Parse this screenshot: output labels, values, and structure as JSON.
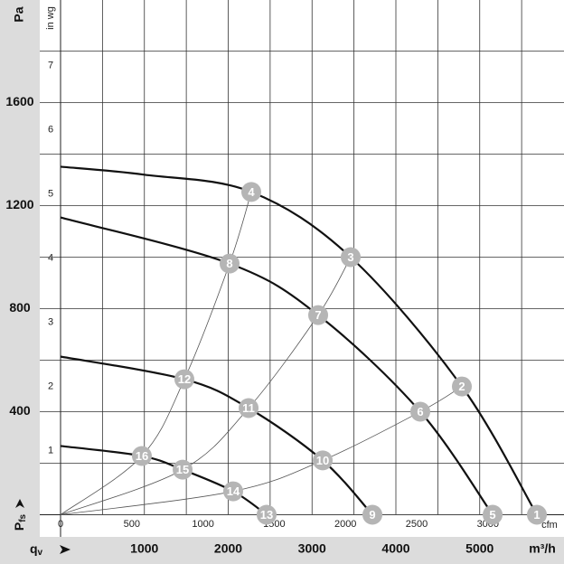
{
  "chart_data": {
    "type": "fan-curve",
    "y_label": "Pa",
    "y_quantity": {
      "main": "P",
      "sub": "fs"
    },
    "y2_label": "in wg",
    "x_label": "m³/h",
    "x_quantity": {
      "main": "q",
      "sub": "v"
    },
    "x2_label": "cfm",
    "xlim": [
      0,
      6000
    ],
    "xticks": [
      1000,
      2000,
      3000,
      4000,
      5000
    ],
    "xgrid": [
      500,
      1000,
      1500,
      2000,
      2500,
      3000,
      3500,
      4000,
      4500,
      5000,
      5500
    ],
    "x2lim": [
      0,
      3531
    ],
    "x2ticks": [
      0,
      500,
      1000,
      1500,
      2000,
      2500,
      3000
    ],
    "ylim": [
      0,
      2000
    ],
    "yticks": [
      400,
      800,
      1200,
      1600
    ],
    "ygrid": [
      200,
      400,
      600,
      800,
      1000,
      1200,
      1400,
      1600,
      1800
    ],
    "y2lim": [
      0,
      8.03
    ],
    "y2ticks": [
      1,
      2,
      3,
      4,
      5,
      6,
      7
    ],
    "curve_color": "#111111",
    "system_color": "#555555",
    "marker_color": "#b5b5b5",
    "series": [
      {
        "x": [
          0,
          1000,
          2275,
          3461,
          4787,
          5682
        ],
        "values": [
          1351,
          1320,
          1253,
          1000,
          498,
          0
        ],
        "point_labels": [
          null,
          null,
          "4",
          "3",
          "2",
          "1"
        ]
      },
      {
        "x": [
          0,
          2016,
          3073,
          4291,
          5154
        ],
        "values": [
          1154,
          975,
          775,
          400,
          0
        ],
        "point_labels": [
          null,
          "8",
          "7",
          "6",
          "5"
        ]
      },
      {
        "x": [
          0,
          1477,
          2243,
          3127,
          3720
        ],
        "values": [
          614,
          526,
          414,
          211,
          0
        ],
        "point_labels": [
          null,
          "12",
          "11",
          "10",
          "9"
        ]
      },
      {
        "x": [
          0,
          970,
          1456,
          2059,
          2458
        ],
        "values": [
          267,
          228,
          175,
          91,
          0
        ],
        "point_labels": [
          null,
          "16",
          "15",
          "14",
          "13"
        ]
      }
    ],
    "system_curves": [
      {
        "x": [
          0,
          970,
          1477,
          2016,
          2275
        ],
        "values": [
          0,
          228,
          526,
          975,
          1253
        ]
      },
      {
        "x": [
          0,
          1456,
          2243,
          3073,
          3461
        ],
        "values": [
          0,
          175,
          414,
          775,
          1000
        ]
      },
      {
        "x": [
          0,
          2059,
          3127,
          4291,
          4787
        ],
        "values": [
          0,
          91,
          211,
          400,
          498
        ]
      },
      {
        "x": [
          0,
          2458,
          3720,
          5154,
          5682
        ],
        "values": [
          0,
          0,
          0,
          0,
          0
        ]
      }
    ]
  }
}
